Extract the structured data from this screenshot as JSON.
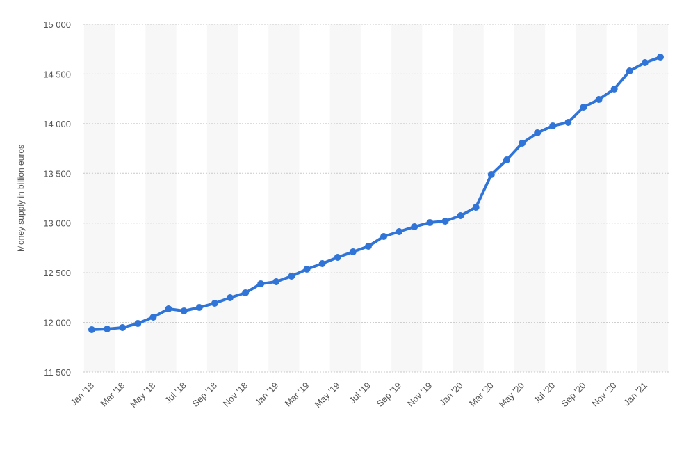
{
  "chart_data": {
    "type": "line",
    "y_label": "Money supply in billion euros",
    "categories": [
      "Jan '18",
      null,
      "Mar '18",
      null,
      "May '18",
      null,
      "Jul '18",
      null,
      "Sep '18",
      null,
      "Nov '18",
      null,
      "Jan '19",
      null,
      "Mar '19",
      null,
      "May '19",
      null,
      "Jul '19",
      null,
      "Sep '19",
      null,
      "Nov '19",
      null,
      "Jan '20",
      null,
      "Mar '20",
      null,
      "May '20",
      null,
      "Jul '20",
      null,
      "Sep '20",
      null,
      "Nov '20",
      null,
      "Jan '21",
      null
    ],
    "series": [
      {
        "color": "#2f74d6",
        "values": [
          11927,
          11934,
          11948,
          11990,
          12053,
          12137,
          12116,
          12151,
          12193,
          12249,
          12298,
          12389,
          12410,
          12466,
          12536,
          12592,
          12655,
          12711,
          12767,
          12865,
          12914,
          12963,
          13005,
          13019,
          13075,
          13159,
          13488,
          13635,
          13803,
          13908,
          13978,
          14013,
          14167,
          14244,
          14349,
          14531,
          14615,
          14671
        ]
      }
    ],
    "ylim": [
      11500,
      15000
    ],
    "yticks": [
      {
        "value": 11500,
        "label": "11 500"
      },
      {
        "value": 12000,
        "label": "12 000"
      },
      {
        "value": 12500,
        "label": "12 500"
      },
      {
        "value": 13000,
        "label": "13 000"
      },
      {
        "value": 13500,
        "label": "13 500"
      },
      {
        "value": 14000,
        "label": "14 000"
      },
      {
        "value": 14500,
        "label": "14 500"
      },
      {
        "value": 15000,
        "label": "15 000"
      }
    ],
    "grid": true
  }
}
